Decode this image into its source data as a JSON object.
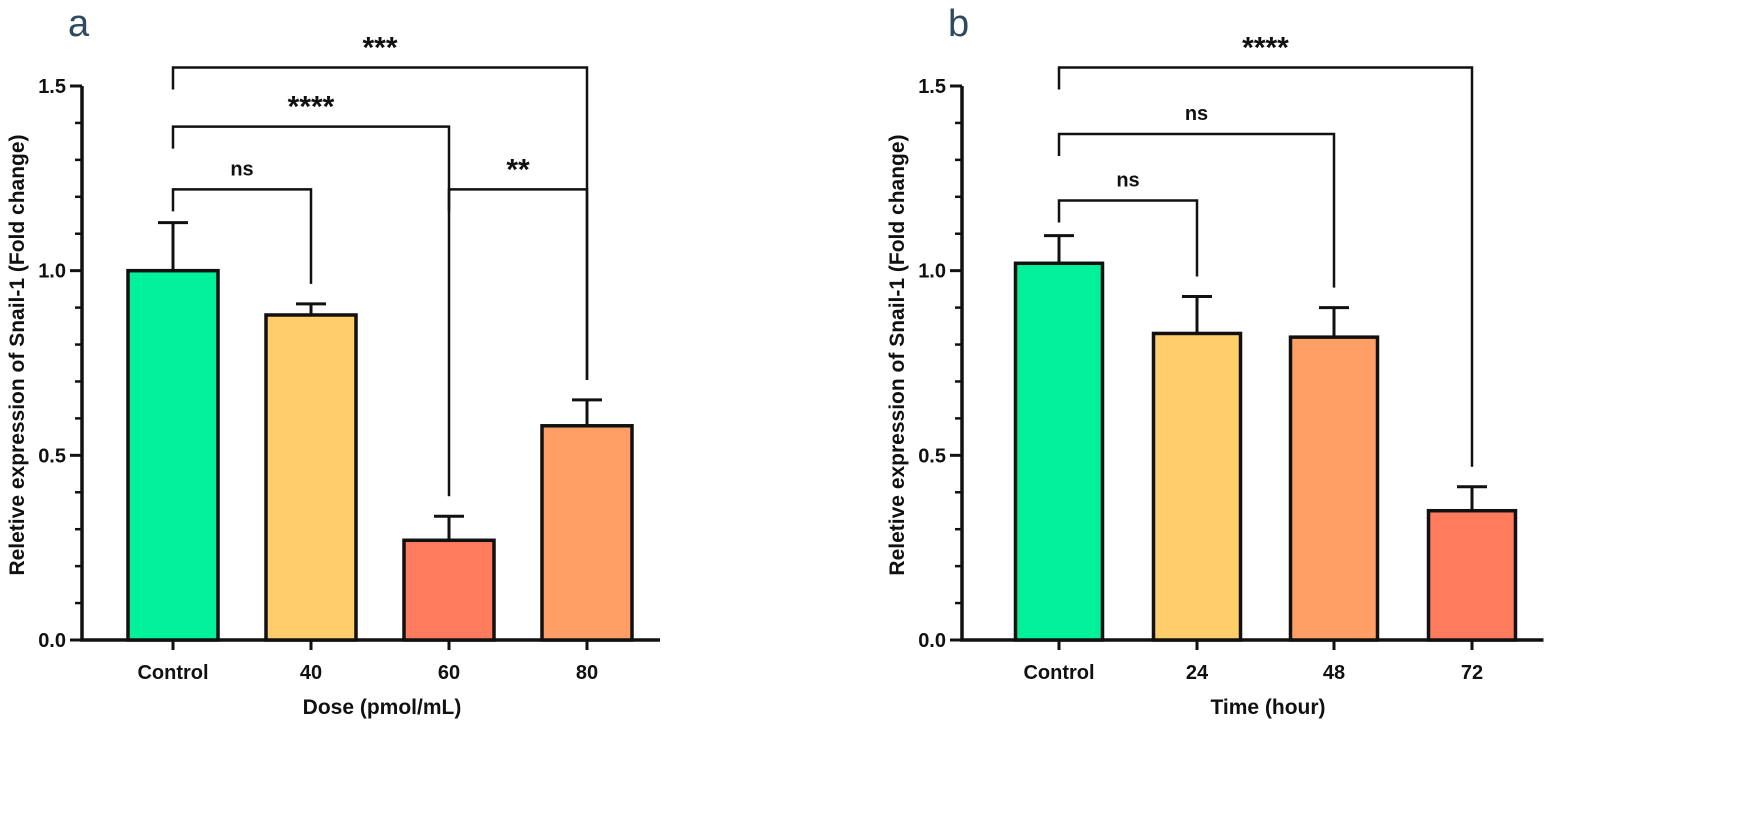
{
  "chart_data": [
    {
      "type": "bar",
      "panel_label": "a",
      "title": "",
      "xlabel": "Dose (pmol/mL)",
      "ylabel": "Reletive expression of Snail-1 (Fold change)",
      "ylim": [
        0,
        1.5
      ],
      "yticks": [
        0.0,
        0.5,
        1.0,
        1.5
      ],
      "ytick_labels": [
        "0.0",
        "0.5",
        "1.0",
        "1.5"
      ],
      "categories": [
        "Control",
        "40",
        "60",
        "80"
      ],
      "values": [
        1.0,
        0.88,
        0.27,
        0.58
      ],
      "errors": [
        0.13,
        0.03,
        0.065,
        0.07
      ],
      "colors": [
        "#00f19a",
        "#ffcd69",
        "#ff7b5e",
        "#ff9f66"
      ],
      "comparisons": [
        {
          "from": 0,
          "to": 1,
          "label": "ns",
          "level": 1.22
        },
        {
          "from": 2,
          "to": 3,
          "label": "**",
          "level": 1.22
        },
        {
          "from": 0,
          "to": 2,
          "label": "****",
          "level": 1.39
        },
        {
          "from": 0,
          "to": 3,
          "label": "***",
          "level": 1.55
        }
      ]
    },
    {
      "type": "bar",
      "panel_label": "b",
      "title": "",
      "xlabel": "Time (hour)",
      "ylabel": "Reletive expression of Snail-1 (Fold change)",
      "ylim": [
        0,
        1.5
      ],
      "yticks": [
        0.0,
        0.5,
        1.0,
        1.5
      ],
      "ytick_labels": [
        "0.0",
        "0.5",
        "1.0",
        "1.5"
      ],
      "categories": [
        "Control",
        "24",
        "48",
        "72"
      ],
      "values": [
        1.02,
        0.83,
        0.82,
        0.35
      ],
      "errors": [
        0.075,
        0.1,
        0.08,
        0.065
      ],
      "colors": [
        "#00f19a",
        "#ffcd69",
        "#ff9f66",
        "#ff7b5e"
      ],
      "comparisons": [
        {
          "from": 0,
          "to": 1,
          "label": "ns",
          "level": 1.19
        },
        {
          "from": 0,
          "to": 2,
          "label": "ns",
          "level": 1.37
        },
        {
          "from": 0,
          "to": 3,
          "label": "****",
          "level": 1.55
        }
      ]
    }
  ]
}
